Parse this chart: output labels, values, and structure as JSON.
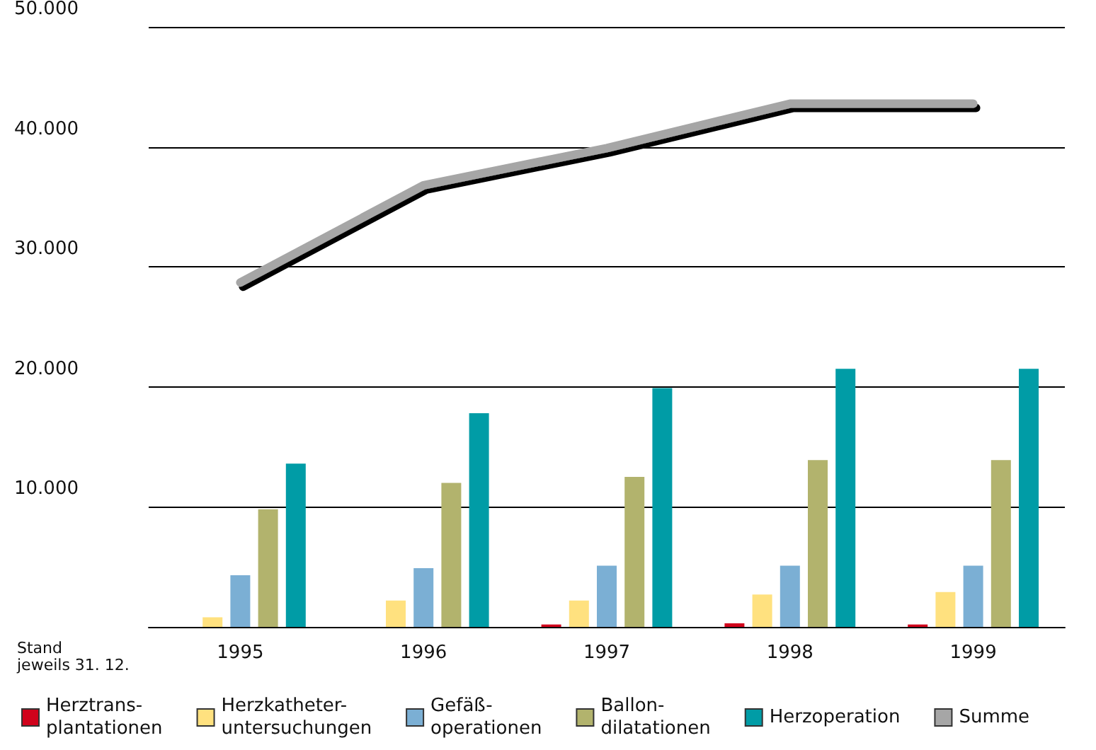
{
  "chart_data": {
    "type": "bar",
    "categories": [
      "1995",
      "1996",
      "1997",
      "1998",
      "1999"
    ],
    "series": [
      {
        "name": "Herztrans-\nplantationen",
        "color": "#d0021b",
        "values": [
          null,
          null,
          200,
          300,
          200
        ]
      },
      {
        "name": "Herzkatheter-\nuntersuchungen",
        "color": "#ffe17f",
        "values": [
          800,
          2200,
          2200,
          2700,
          2900
        ]
      },
      {
        "name": "Gefäß-\noperationen",
        "color": "#7bafd4",
        "values": [
          4300,
          4900,
          5100,
          5100,
          5100
        ]
      },
      {
        "name": "Ballon-\ndilatationen",
        "color": "#b2b36d",
        "values": [
          9800,
          12000,
          12500,
          13900,
          13900
        ]
      },
      {
        "name": "Herzoperation",
        "color": "#009ca6",
        "values": [
          13600,
          17800,
          19900,
          21500,
          21500
        ]
      },
      {
        "name": "Summe",
        "type": "line",
        "color": "#a6a6a6",
        "values": [
          28700,
          36800,
          39900,
          43600,
          43600
        ]
      }
    ],
    "ylim": [
      0,
      50000
    ],
    "yticks": [
      {
        "value": 0,
        "label": null
      },
      {
        "value": 10000,
        "label": "10.000"
      },
      {
        "value": 20000,
        "label": "20.000"
      },
      {
        "value": 30000,
        "label": "30.000"
      },
      {
        "value": 40000,
        "label": "40.000"
      },
      {
        "value": 50000,
        "label": "50.000"
      }
    ],
    "annotations": [
      "Stand\njeweils 31. 12."
    ],
    "grid": "y",
    "legend": "bottom",
    "marker": "none",
    "line_style": "solid"
  }
}
